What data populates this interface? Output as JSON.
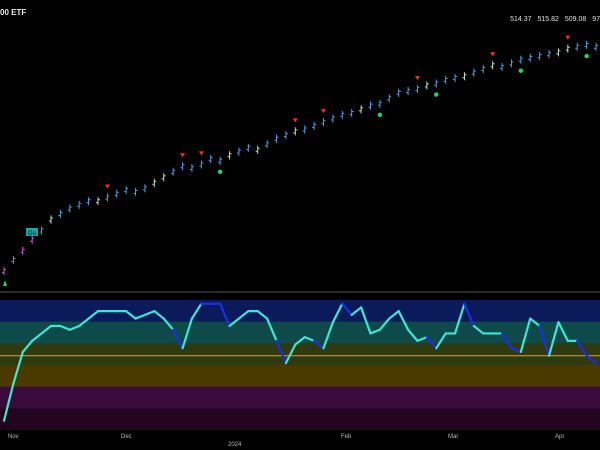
{
  "header": {
    "symbol_label": "00 ETF",
    "ohlc": [
      {
        "tag": "",
        "value": "514.37"
      },
      {
        "tag": "",
        "value": "515.82"
      },
      {
        "tag": "",
        "value": "509.08"
      },
      {
        "tag": "",
        "value": "97"
      }
    ]
  },
  "badge": {
    "label": "Go"
  },
  "axis": {
    "months": [
      "Nov",
      "Dec",
      "2024",
      "Feb",
      "Mar",
      "Apr"
    ]
  },
  "colors": {
    "background": "#000000",
    "bar_blue": "#4aa0e6",
    "bar_pale": "#b8e6c8",
    "bar_magenta": "#d05cd0",
    "signal_red": "#ff2a2a",
    "signal_green": "#19d96b",
    "osc_cyan": "#3ee6d6",
    "osc_blue": "#1a2ee6",
    "zero_line": "#e8a020",
    "band_1": "#0b1a5a",
    "band_2": "#0e4a4a",
    "band_3": "#2e3a10",
    "band_4": "#4a3a00",
    "band_5": "#3a0a3a",
    "band_6": "#220620"
  },
  "chart_data": {
    "type": "line",
    "price_series": [
      430,
      436,
      441,
      447,
      452,
      458,
      461,
      464,
      466,
      468,
      468,
      470,
      472,
      474,
      473,
      475,
      478,
      481,
      484,
      487,
      486,
      488,
      491,
      490,
      493,
      495,
      497,
      496,
      499,
      502,
      504,
      506,
      507,
      509,
      511,
      513,
      515,
      516,
      518,
      520,
      521,
      524,
      527,
      528,
      529,
      531,
      532,
      534,
      535,
      536,
      538,
      540,
      542,
      541,
      543,
      545,
      546,
      547,
      548,
      549,
      551,
      552,
      553,
      552
    ],
    "oscillator_series": [
      -3.5,
      -1.5,
      0.2,
      0.8,
      1.2,
      1.6,
      1.6,
      1.4,
      1.6,
      2.0,
      2.4,
      2.4,
      2.4,
      2.4,
      2.0,
      2.2,
      2.4,
      2.0,
      1.4,
      0.4,
      2.0,
      2.8,
      2.8,
      2.8,
      1.6,
      2.0,
      2.4,
      2.4,
      2.0,
      0.8,
      -0.4,
      0.6,
      1.0,
      0.8,
      0.4,
      1.8,
      2.8,
      2.2,
      2.6,
      1.2,
      1.4,
      2.0,
      2.4,
      1.4,
      0.8,
      1.0,
      0.4,
      1.2,
      1.2,
      2.8,
      1.6,
      1.2,
      1.2,
      1.2,
      0.4,
      0.2,
      2.0,
      1.6,
      0.0,
      1.8,
      0.8,
      0.8,
      0.0,
      -0.4
    ],
    "osc_range": [
      -4,
      3
    ]
  }
}
